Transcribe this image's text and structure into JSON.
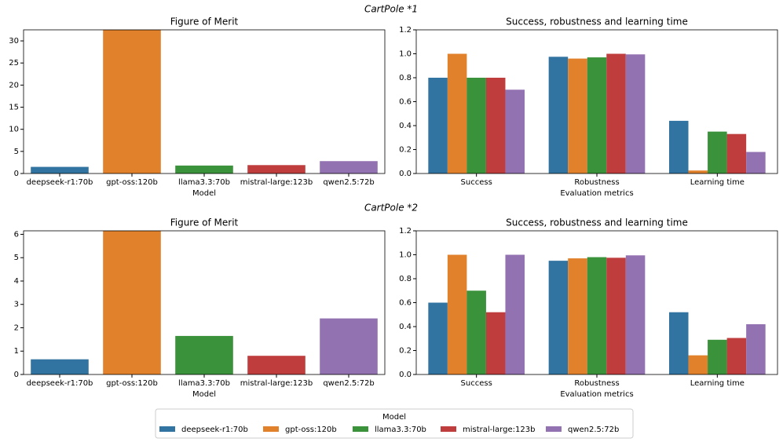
{
  "suptitles": [
    "CartPole *1",
    "CartPole *2"
  ],
  "legend": {
    "title": "Model"
  },
  "chart_data": [
    {
      "type": "bar",
      "title": "Figure of Merit",
      "x_label": "Model",
      "categories": [
        "deepseek-r1:70b",
        "gpt-oss:120b",
        "llama3.3:70b",
        "mistral-large:123b",
        "qwen2.5:72b"
      ],
      "values": [
        1.5,
        32.5,
        1.8,
        1.9,
        2.8
      ],
      "colors": [
        "#3274a1",
        "#e1812c",
        "#3a923a",
        "#c03d3e",
        "#9372b2"
      ],
      "ylim": [
        0,
        32.5
      ],
      "yticks": [
        0,
        5,
        10,
        15,
        20,
        25,
        30
      ]
    },
    {
      "type": "bar",
      "title": "Success, robustness and learning time",
      "x_label": "Evaluation metrics",
      "categories": [
        "Success",
        "Robustness",
        "Learning time"
      ],
      "series": [
        {
          "name": "deepseek-r1:70b",
          "color": "#3274a1",
          "values": [
            0.8,
            0.975,
            0.44
          ]
        },
        {
          "name": "gpt-oss:120b",
          "color": "#e1812c",
          "values": [
            1.0,
            0.96,
            0.025
          ]
        },
        {
          "name": "llama3.3:70b",
          "color": "#3a923a",
          "values": [
            0.8,
            0.97,
            0.35
          ]
        },
        {
          "name": "mistral-large:123b",
          "color": "#c03d3e",
          "values": [
            0.8,
            1.0,
            0.33
          ]
        },
        {
          "name": "qwen2.5:72b",
          "color": "#9372b2",
          "values": [
            0.7,
            0.995,
            0.18
          ]
        }
      ],
      "ylim": [
        0,
        1.2
      ],
      "yticks": [
        {
          "value": 0,
          "label": "0.0"
        },
        0.2,
        0.4,
        0.6,
        0.8,
        {
          "value": 1,
          "label": "1.0"
        },
        1.2
      ]
    },
    {
      "type": "bar",
      "title": "Figure of Merit",
      "x_label": "Model",
      "categories": [
        "deepseek-r1:70b",
        "gpt-oss:120b",
        "llama3.3:70b",
        "mistral-large:123b",
        "qwen2.5:72b"
      ],
      "values": [
        0.65,
        6.15,
        1.65,
        0.8,
        2.4
      ],
      "colors": [
        "#3274a1",
        "#e1812c",
        "#3a923a",
        "#c03d3e",
        "#9372b2"
      ],
      "ylim": [
        0,
        6.15
      ],
      "yticks": [
        0,
        1,
        2,
        3,
        4,
        5,
        6
      ]
    },
    {
      "type": "bar",
      "title": "Success, robustness and learning time",
      "x_label": "Evaluation metrics",
      "categories": [
        "Success",
        "Robustness",
        "Learning time"
      ],
      "series": [
        {
          "name": "deepseek-r1:70b",
          "color": "#3274a1",
          "values": [
            0.6,
            0.95,
            0.52
          ]
        },
        {
          "name": "gpt-oss:120b",
          "color": "#e1812c",
          "values": [
            1.0,
            0.97,
            0.16
          ]
        },
        {
          "name": "llama3.3:70b",
          "color": "#3a923a",
          "values": [
            0.7,
            0.98,
            0.29
          ]
        },
        {
          "name": "mistral-large:123b",
          "color": "#c03d3e",
          "values": [
            0.52,
            0.975,
            0.305
          ]
        },
        {
          "name": "qwen2.5:72b",
          "color": "#9372b2",
          "values": [
            1.0,
            0.995,
            0.42
          ]
        }
      ],
      "ylim": [
        0,
        1.2
      ],
      "yticks": [
        {
          "value": 0,
          "label": "0.0"
        },
        0.2,
        0.4,
        0.6,
        0.8,
        {
          "value": 1,
          "label": "1.0"
        },
        1.2
      ]
    }
  ]
}
